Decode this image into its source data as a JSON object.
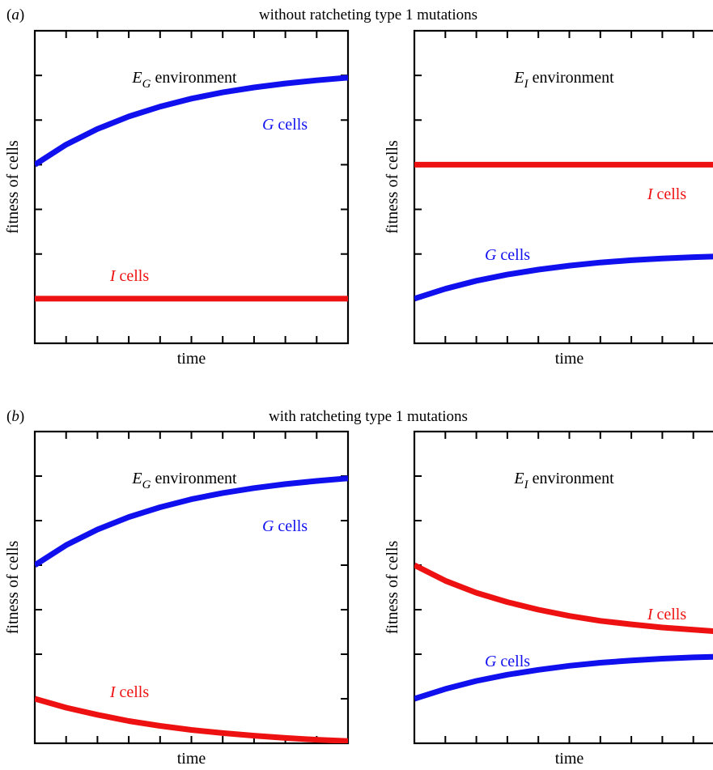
{
  "rows": [
    {
      "label_prefix": "(",
      "label_letter": "a",
      "label_suffix": ")",
      "title": "without ratcheting type 1 mutations"
    },
    {
      "label_prefix": "(",
      "label_letter": "b",
      "label_suffix": ")",
      "title": "with ratcheting type 1 mutations"
    }
  ],
  "colors": {
    "G": "#1010ee",
    "I": "#ee1111",
    "axis": "#000000"
  },
  "chart_data": [
    {
      "panel": "a-left",
      "type": "line",
      "env_base": "E",
      "env_sub": "G",
      "env_rest": " environment",
      "xlabel": "time",
      "ylabel": "fitness of cells",
      "xlim": [
        0,
        10
      ],
      "ylim": [
        0,
        7
      ],
      "grid": false,
      "series": [
        {
          "name": "G cells",
          "name_italic": "G",
          "name_rest": " cells",
          "color": "#1010ee",
          "x": [
            0,
            1,
            2,
            3,
            4,
            5,
            6,
            7,
            8,
            9,
            10
          ],
          "y": [
            4.0,
            4.45,
            4.8,
            5.08,
            5.3,
            5.48,
            5.62,
            5.73,
            5.82,
            5.89,
            5.95
          ]
        },
        {
          "name": "I cells",
          "name_italic": "I",
          "name_rest": " cells",
          "color": "#ee1111",
          "x": [
            0,
            10
          ],
          "y": [
            1.0,
            1.0
          ]
        }
      ]
    },
    {
      "panel": "a-right",
      "type": "line",
      "env_base": "E",
      "env_sub": "I",
      "env_rest": " environment",
      "xlabel": "time",
      "ylabel": "fitness of cells",
      "xlim": [
        0,
        10
      ],
      "ylim": [
        0,
        7
      ],
      "grid": false,
      "series": [
        {
          "name": "I cells",
          "name_italic": "I",
          "name_rest": " cells",
          "color": "#ee1111",
          "x": [
            0,
            10
          ],
          "y": [
            4.0,
            4.0
          ]
        },
        {
          "name": "G cells",
          "name_italic": "G",
          "name_rest": " cells",
          "color": "#1010ee",
          "x": [
            0,
            1,
            2,
            3,
            4,
            5,
            6,
            7,
            8,
            9,
            10
          ],
          "y": [
            1.0,
            1.22,
            1.4,
            1.54,
            1.65,
            1.74,
            1.81,
            1.86,
            1.9,
            1.93,
            1.95
          ]
        }
      ]
    },
    {
      "panel": "b-left",
      "type": "line",
      "env_base": "E",
      "env_sub": "G",
      "env_rest": " environment",
      "xlabel": "time",
      "ylabel": "fitness of cells",
      "xlim": [
        0,
        10
      ],
      "ylim": [
        0,
        7
      ],
      "grid": false,
      "series": [
        {
          "name": "G cells",
          "name_italic": "G",
          "name_rest": " cells",
          "color": "#1010ee",
          "x": [
            0,
            1,
            2,
            3,
            4,
            5,
            6,
            7,
            8,
            9,
            10
          ],
          "y": [
            4.0,
            4.45,
            4.8,
            5.08,
            5.3,
            5.48,
            5.62,
            5.73,
            5.82,
            5.89,
            5.95
          ]
        },
        {
          "name": "I cells",
          "name_italic": "I",
          "name_rest": " cells",
          "color": "#ee1111",
          "x": [
            0,
            1,
            2,
            3,
            4,
            5,
            6,
            7,
            8,
            9,
            10
          ],
          "y": [
            1.0,
            0.8,
            0.64,
            0.5,
            0.39,
            0.3,
            0.23,
            0.17,
            0.12,
            0.08,
            0.05
          ]
        }
      ]
    },
    {
      "panel": "b-right",
      "type": "line",
      "env_base": "E",
      "env_sub": "I",
      "env_rest": " environment",
      "xlabel": "time",
      "ylabel": "fitness of cells",
      "xlim": [
        0,
        10
      ],
      "ylim": [
        0,
        7
      ],
      "grid": false,
      "series": [
        {
          "name": "I cells",
          "name_italic": "I",
          "name_rest": " cells",
          "color": "#ee1111",
          "x": [
            0,
            1,
            2,
            3,
            4,
            5,
            6,
            7,
            8,
            9,
            10
          ],
          "y": [
            4.0,
            3.65,
            3.38,
            3.17,
            3.0,
            2.86,
            2.75,
            2.67,
            2.6,
            2.55,
            2.5
          ]
        },
        {
          "name": "G cells",
          "name_italic": "G",
          "name_rest": " cells",
          "color": "#1010ee",
          "x": [
            0,
            1,
            2,
            3,
            4,
            5,
            6,
            7,
            8,
            9,
            10
          ],
          "y": [
            1.0,
            1.22,
            1.4,
            1.54,
            1.65,
            1.74,
            1.81,
            1.86,
            1.9,
            1.93,
            1.95
          ]
        }
      ]
    }
  ]
}
